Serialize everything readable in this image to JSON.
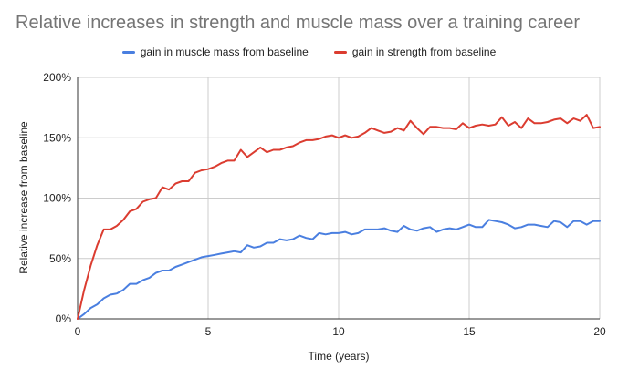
{
  "chart_data": {
    "type": "line",
    "title": "Relative increases in strength and muscle mass over a training career",
    "xlabel": "Time (years)",
    "ylabel": "Relative increase from baseline",
    "xlim": [
      0,
      20
    ],
    "ylim": [
      0,
      200
    ],
    "x_ticks": [
      "0",
      "5",
      "10",
      "15",
      "20"
    ],
    "y_ticks": [
      "0%",
      "50%",
      "100%",
      "150%",
      "200%"
    ],
    "grid": true,
    "legend_position": "top",
    "series": [
      {
        "name": "gain in muscle mass from baseline",
        "color": "#4a7fe0",
        "points": [
          [
            0,
            0
          ],
          [
            0.25,
            4
          ],
          [
            0.5,
            9
          ],
          [
            0.75,
            12
          ],
          [
            1,
            17
          ],
          [
            1.25,
            20
          ],
          [
            1.5,
            21
          ],
          [
            1.75,
            24
          ],
          [
            2,
            29
          ],
          [
            2.25,
            29
          ],
          [
            2.5,
            32
          ],
          [
            2.75,
            34
          ],
          [
            3,
            38
          ],
          [
            3.25,
            40
          ],
          [
            3.5,
            40
          ],
          [
            3.75,
            43
          ],
          [
            4,
            45
          ],
          [
            4.25,
            47
          ],
          [
            4.5,
            49
          ],
          [
            4.75,
            51
          ],
          [
            5,
            52
          ],
          [
            5.25,
            53
          ],
          [
            5.5,
            54
          ],
          [
            5.75,
            55
          ],
          [
            6,
            56
          ],
          [
            6.25,
            55
          ],
          [
            6.5,
            61
          ],
          [
            6.75,
            59
          ],
          [
            7,
            60
          ],
          [
            7.25,
            63
          ],
          [
            7.5,
            63
          ],
          [
            7.75,
            66
          ],
          [
            8,
            65
          ],
          [
            8.25,
            66
          ],
          [
            8.5,
            69
          ],
          [
            8.75,
            67
          ],
          [
            9,
            66
          ],
          [
            9.25,
            71
          ],
          [
            9.5,
            70
          ],
          [
            9.75,
            71
          ],
          [
            10,
            71
          ],
          [
            10.25,
            72
          ],
          [
            10.5,
            70
          ],
          [
            10.75,
            71
          ],
          [
            11,
            74
          ],
          [
            11.25,
            74
          ],
          [
            11.5,
            74
          ],
          [
            11.75,
            75
          ],
          [
            12,
            73
          ],
          [
            12.25,
            72
          ],
          [
            12.5,
            77
          ],
          [
            12.75,
            74
          ],
          [
            13,
            73
          ],
          [
            13.25,
            75
          ],
          [
            13.5,
            76
          ],
          [
            13.75,
            72
          ],
          [
            14,
            74
          ],
          [
            14.25,
            75
          ],
          [
            14.5,
            74
          ],
          [
            14.75,
            76
          ],
          [
            15,
            78
          ],
          [
            15.25,
            76
          ],
          [
            15.5,
            76
          ],
          [
            15.75,
            82
          ],
          [
            16,
            81
          ],
          [
            16.25,
            80
          ],
          [
            16.5,
            78
          ],
          [
            16.75,
            75
          ],
          [
            17,
            76
          ],
          [
            17.25,
            78
          ],
          [
            17.5,
            78
          ],
          [
            17.75,
            77
          ],
          [
            18,
            76
          ],
          [
            18.25,
            81
          ],
          [
            18.5,
            80
          ],
          [
            18.75,
            76
          ],
          [
            19,
            81
          ],
          [
            19.25,
            81
          ],
          [
            19.5,
            78
          ],
          [
            19.75,
            81
          ],
          [
            20,
            81
          ]
        ]
      },
      {
        "name": "gain in strength from baseline",
        "color": "#db3c30",
        "points": [
          [
            0,
            0
          ],
          [
            0.25,
            24
          ],
          [
            0.5,
            44
          ],
          [
            0.75,
            61
          ],
          [
            1,
            74
          ],
          [
            1.25,
            74
          ],
          [
            1.5,
            77
          ],
          [
            1.75,
            82
          ],
          [
            2,
            89
          ],
          [
            2.25,
            91
          ],
          [
            2.5,
            97
          ],
          [
            2.75,
            99
          ],
          [
            3,
            100
          ],
          [
            3.25,
            109
          ],
          [
            3.5,
            107
          ],
          [
            3.75,
            112
          ],
          [
            4,
            114
          ],
          [
            4.25,
            114
          ],
          [
            4.5,
            121
          ],
          [
            4.75,
            123
          ],
          [
            5,
            124
          ],
          [
            5.25,
            126
          ],
          [
            5.5,
            129
          ],
          [
            5.75,
            131
          ],
          [
            6,
            131
          ],
          [
            6.25,
            140
          ],
          [
            6.5,
            134
          ],
          [
            6.75,
            138
          ],
          [
            7,
            142
          ],
          [
            7.25,
            138
          ],
          [
            7.5,
            140
          ],
          [
            7.75,
            140
          ],
          [
            8,
            142
          ],
          [
            8.25,
            143
          ],
          [
            8.5,
            146
          ],
          [
            8.75,
            148
          ],
          [
            9,
            148
          ],
          [
            9.25,
            149
          ],
          [
            9.5,
            151
          ],
          [
            9.75,
            152
          ],
          [
            10,
            150
          ],
          [
            10.25,
            152
          ],
          [
            10.5,
            150
          ],
          [
            10.75,
            151
          ],
          [
            11,
            154
          ],
          [
            11.25,
            158
          ],
          [
            11.5,
            156
          ],
          [
            11.75,
            154
          ],
          [
            12,
            155
          ],
          [
            12.25,
            158
          ],
          [
            12.5,
            156
          ],
          [
            12.75,
            164
          ],
          [
            13,
            158
          ],
          [
            13.25,
            153
          ],
          [
            13.5,
            159
          ],
          [
            13.75,
            159
          ],
          [
            14,
            158
          ],
          [
            14.25,
            158
          ],
          [
            14.5,
            157
          ],
          [
            14.75,
            162
          ],
          [
            15,
            158
          ],
          [
            15.25,
            160
          ],
          [
            15.5,
            161
          ],
          [
            15.75,
            160
          ],
          [
            16,
            161
          ],
          [
            16.25,
            167
          ],
          [
            16.5,
            160
          ],
          [
            16.75,
            163
          ],
          [
            17,
            158
          ],
          [
            17.25,
            166
          ],
          [
            17.5,
            162
          ],
          [
            17.75,
            162
          ],
          [
            18,
            163
          ],
          [
            18.25,
            165
          ],
          [
            18.5,
            166
          ],
          [
            18.75,
            162
          ],
          [
            19,
            166
          ],
          [
            19.25,
            164
          ],
          [
            19.5,
            169
          ],
          [
            19.75,
            158
          ],
          [
            20,
            159
          ]
        ]
      }
    ]
  }
}
